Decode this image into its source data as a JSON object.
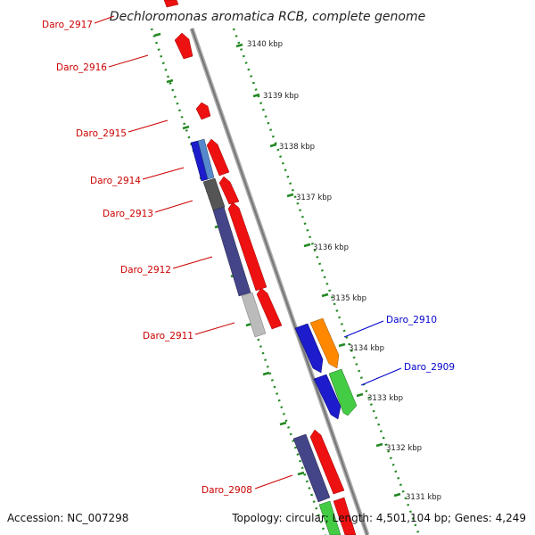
{
  "title": "Dechloromonas aromatica RCB, complete genome",
  "accession_text": "Accession: NC_007298",
  "topology_text": "Topology: circular; Length: 4,501,104 bp; Genes: 4,249",
  "colors": {
    "label_left": "#cc0000",
    "label_right": "#0000cc",
    "backbone": "#888888",
    "tick": "#228822"
  },
  "ruler_labels": [
    "3140 kbp",
    "3139 kbp",
    "3138 kbp",
    "3137 kbp",
    "3136 kbp",
    "3135 kbp",
    "3134 kbp",
    "3133 kbp",
    "3132 kbp",
    "3131 kbp"
  ],
  "left_labels": [
    "Daro_2917",
    "Daro_2916",
    "Daro_2915",
    "Daro_2914",
    "Daro_2913",
    "Daro_2912",
    "Daro_2911",
    "Daro_2908"
  ],
  "right_labels": [
    "Daro_2910",
    "Daro_2909"
  ]
}
